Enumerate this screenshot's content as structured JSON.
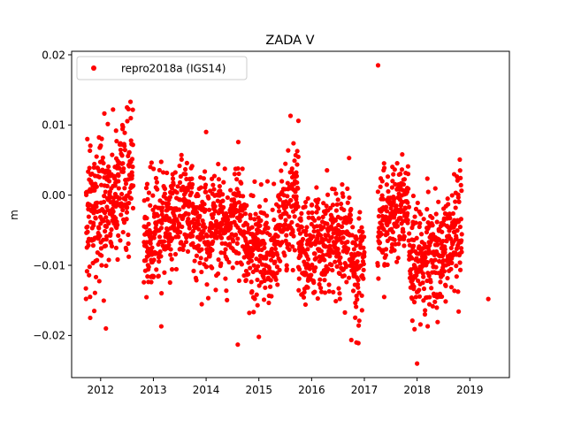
{
  "chart_data": {
    "type": "scatter",
    "title": "ZADA V",
    "xlabel": "",
    "ylabel": "m",
    "xlim": [
      2011.45,
      2019.75
    ],
    "ylim": [
      -0.026,
      0.0205
    ],
    "xticks": [
      2012,
      2013,
      2014,
      2015,
      2016,
      2017,
      2018,
      2019
    ],
    "xtick_labels": [
      "2012",
      "2013",
      "2014",
      "2015",
      "2016",
      "2017",
      "2018",
      "2019"
    ],
    "yticks": [
      0.02,
      0.01,
      0.0,
      -0.01,
      -0.02
    ],
    "ytick_labels": [
      "0.02",
      "0.01",
      "0.00",
      "−0.01",
      "−0.02"
    ],
    "grid": false,
    "legend_position": "top-left",
    "colors": {
      "series": "#ff0000"
    },
    "series": [
      {
        "name": "repro2018a (IGS14)",
        "marker": "circle",
        "color": "#ff0000",
        "segments": [
          {
            "x_range": [
              2011.72,
              2012.62
            ],
            "mean_start": -0.003,
            "mean_end": 0.003,
            "spread": 0.0045
          },
          {
            "x_range": [
              2012.82,
              2013.75
            ],
            "mean_start": -0.007,
            "mean_end": -0.001,
            "spread": 0.0038
          },
          {
            "x_range": [
              2013.75,
              2014.75
            ],
            "mean_start": -0.005,
            "mean_end": -0.004,
            "spread": 0.0038
          },
          {
            "x_range": [
              2014.75,
              2015.35
            ],
            "mean_start": -0.007,
            "mean_end": -0.008,
            "spread": 0.0038
          },
          {
            "x_range": [
              2015.35,
              2015.75
            ],
            "mean_start": -0.005,
            "mean_end": 0.0,
            "spread": 0.0038
          },
          {
            "x_range": [
              2015.75,
              2016.75
            ],
            "mean_start": -0.008,
            "mean_end": -0.006,
            "spread": 0.0038
          },
          {
            "x_range": [
              2016.75,
              2017.0
            ],
            "mean_start": -0.009,
            "mean_end": -0.01,
            "spread": 0.0038
          },
          {
            "x_range": [
              2017.25,
              2017.85
            ],
            "mean_start": -0.004,
            "mean_end": -0.001,
            "spread": 0.0038
          },
          {
            "x_range": [
              2017.85,
              2018.5
            ],
            "mean_start": -0.01,
            "mean_end": -0.008,
            "spread": 0.004
          },
          {
            "x_range": [
              2018.5,
              2018.85
            ],
            "mean_start": -0.007,
            "mean_end": -0.004,
            "spread": 0.0038
          }
        ],
        "outliers": [
          {
            "x": 2012.1,
            "y": -0.019
          },
          {
            "x": 2015.6,
            "y": 0.0113
          },
          {
            "x": 2017.26,
            "y": 0.0185
          },
          {
            "x": 2018.0,
            "y": -0.024
          },
          {
            "x": 2014.6,
            "y": -0.0213
          },
          {
            "x": 2019.35,
            "y": -0.0148
          },
          {
            "x": 2013.15,
            "y": -0.0187
          },
          {
            "x": 2012.5,
            "y": 0.0125
          },
          {
            "x": 2014.0,
            "y": 0.009
          },
          {
            "x": 2016.85,
            "y": -0.021
          },
          {
            "x": 2015.0,
            "y": -0.0202
          },
          {
            "x": 2011.8,
            "y": -0.0145
          }
        ]
      }
    ]
  }
}
